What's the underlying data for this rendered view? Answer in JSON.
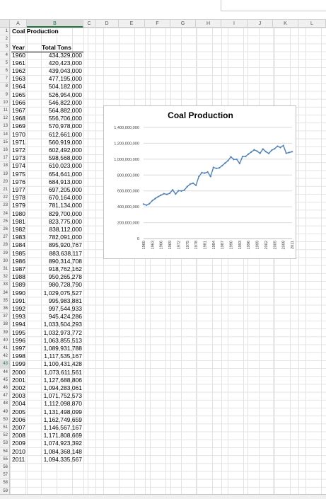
{
  "columns": [
    "A",
    "B",
    "C",
    "D",
    "E",
    "F",
    "G",
    "H",
    "I",
    "J",
    "K",
    "L"
  ],
  "selected_column": "B",
  "selected_row": 43,
  "sheet_title": "Coal Production",
  "header_year": "Year",
  "header_total": "Total Tons",
  "rows": [
    {
      "year": "1960",
      "tons": "434,329,000"
    },
    {
      "year": "1961",
      "tons": "420,423,000"
    },
    {
      "year": "1962",
      "tons": "439,043,000"
    },
    {
      "year": "1963",
      "tons": "477,195,000"
    },
    {
      "year": "1964",
      "tons": "504,182,000"
    },
    {
      "year": "1965",
      "tons": "526,954,000"
    },
    {
      "year": "1966",
      "tons": "546,822,000"
    },
    {
      "year": "1967",
      "tons": "564,882,000"
    },
    {
      "year": "1968",
      "tons": "556,706,000"
    },
    {
      "year": "1969",
      "tons": "570,978,000"
    },
    {
      "year": "1970",
      "tons": "612,661,000"
    },
    {
      "year": "1971",
      "tons": "560,919,000"
    },
    {
      "year": "1972",
      "tons": "602,492,000"
    },
    {
      "year": "1973",
      "tons": "598,568,000"
    },
    {
      "year": "1974",
      "tons": "610,023,000"
    },
    {
      "year": "1975",
      "tons": "654,641,000"
    },
    {
      "year": "1976",
      "tons": "684,913,000"
    },
    {
      "year": "1977",
      "tons": "697,205,000"
    },
    {
      "year": "1978",
      "tons": "670,164,000"
    },
    {
      "year": "1979",
      "tons": "781,134,000"
    },
    {
      "year": "1980",
      "tons": "829,700,000"
    },
    {
      "year": "1981",
      "tons": "823,775,000"
    },
    {
      "year": "1982",
      "tons": "838,112,000"
    },
    {
      "year": "1983",
      "tons": "782,091,000"
    },
    {
      "year": "1984",
      "tons": "895,920,767"
    },
    {
      "year": "1985",
      "tons": "883,638,117"
    },
    {
      "year": "1986",
      "tons": "890,314,708"
    },
    {
      "year": "1987",
      "tons": "918,762,162"
    },
    {
      "year": "1988",
      "tons": "950,265,278"
    },
    {
      "year": "1989",
      "tons": "980,728,790"
    },
    {
      "year": "1990",
      "tons": "1,029,075,527"
    },
    {
      "year": "1991",
      "tons": "995,983,881"
    },
    {
      "year": "1992",
      "tons": "997,544,933"
    },
    {
      "year": "1993",
      "tons": "945,424,286"
    },
    {
      "year": "1994",
      "tons": "1,033,504,293"
    },
    {
      "year": "1995",
      "tons": "1,032,973,772"
    },
    {
      "year": "1996",
      "tons": "1,063,855,513"
    },
    {
      "year": "1997",
      "tons": "1,089,931,788"
    },
    {
      "year": "1998",
      "tons": "1,117,535,167"
    },
    {
      "year": "1999",
      "tons": "1,100,431,428"
    },
    {
      "year": "2000",
      "tons": "1,073,611,561"
    },
    {
      "year": "2001",
      "tons": "1,127,688,806"
    },
    {
      "year": "2002",
      "tons": "1,094,283,061"
    },
    {
      "year": "2003",
      "tons": "1,071,752,573"
    },
    {
      "year": "2004",
      "tons": "1,112,098,870"
    },
    {
      "year": "2005",
      "tons": "1,131,498,099"
    },
    {
      "year": "2006",
      "tons": "1,162,749,659"
    },
    {
      "year": "2007",
      "tons": "1,146,567,167"
    },
    {
      "year": "2008",
      "tons": "1,171,808,669"
    },
    {
      "year": "2009",
      "tons": "1,074,923,392"
    },
    {
      "year": "2010",
      "tons": "1,084,368,148"
    },
    {
      "year": "2011",
      "tons": "1,094,335,567"
    }
  ],
  "colors": {
    "line": "#4f81bd",
    "selection": "#217346",
    "gridline": "#d9d9d9"
  },
  "chart_data": {
    "type": "line",
    "title": "Coal Production",
    "xlabel": "",
    "ylabel": "",
    "ylim": [
      0,
      1400000000
    ],
    "y_ticks": [
      "0",
      "200,000,000",
      "400,000,000",
      "600,000,000",
      "800,000,000",
      "1,000,000,000",
      "1,200,000,000",
      "1,400,000,000"
    ],
    "x_tick_labels": [
      "1960",
      "1963",
      "1966",
      "1969",
      "1972",
      "1975",
      "1978",
      "1981",
      "1984",
      "1987",
      "1990",
      "1993",
      "1996",
      "1999",
      "2002",
      "2005",
      "2008",
      "2011"
    ],
    "grid": true,
    "legend": "none",
    "x": [
      1960,
      1961,
      1962,
      1963,
      1964,
      1965,
      1966,
      1967,
      1968,
      1969,
      1970,
      1971,
      1972,
      1973,
      1974,
      1975,
      1976,
      1977,
      1978,
      1979,
      1980,
      1981,
      1982,
      1983,
      1984,
      1985,
      1986,
      1987,
      1988,
      1989,
      1990,
      1991,
      1992,
      1993,
      1994,
      1995,
      1996,
      1997,
      1998,
      1999,
      2000,
      2001,
      2002,
      2003,
      2004,
      2005,
      2006,
      2007,
      2008,
      2009,
      2010,
      2011
    ],
    "values": [
      434329000,
      420423000,
      439043000,
      477195000,
      504182000,
      526954000,
      546822000,
      564882000,
      556706000,
      570978000,
      612661000,
      560919000,
      602492000,
      598568000,
      610023000,
      654641000,
      684913000,
      697205000,
      670164000,
      781134000,
      829700000,
      823775000,
      838112000,
      782091000,
      895920767,
      883638117,
      890314708,
      918762162,
      950265278,
      980728790,
      1029075527,
      995983881,
      997544933,
      945424286,
      1033504293,
      1032973772,
      1063855513,
      1089931788,
      1117535167,
      1100431428,
      1073611561,
      1127688806,
      1094283061,
      1071752573,
      1112098870,
      1131498099,
      1162749659,
      1146567167,
      1171808669,
      1074923392,
      1084368148,
      1094335567
    ]
  }
}
